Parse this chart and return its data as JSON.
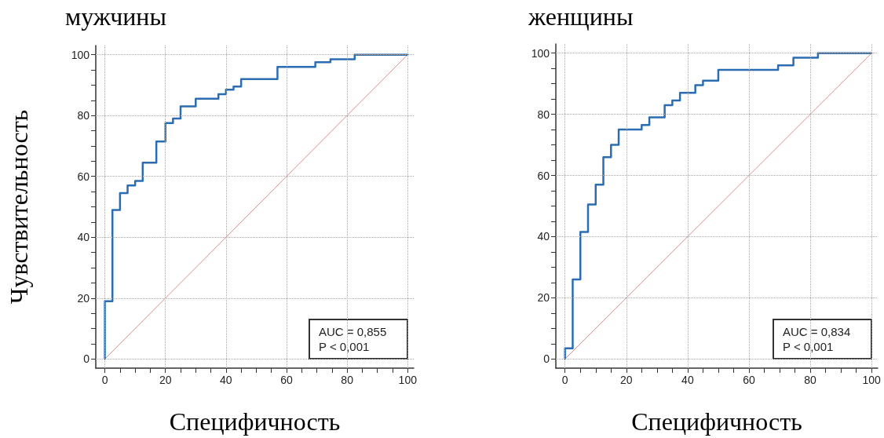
{
  "chart_data": [
    {
      "type": "line",
      "title": "мужчины",
      "xlabel": "Специфичность",
      "ylabel": "Чувствительность",
      "xlim": [
        -3,
        102
      ],
      "ylim": [
        -3,
        103
      ],
      "xticks": [
        0,
        20,
        40,
        60,
        80,
        100
      ],
      "yticks": [
        0,
        20,
        40,
        60,
        80,
        100
      ],
      "grid": true,
      "marker": "none",
      "line_style": "solid",
      "series": [
        {
          "color": "#2a6db3",
          "x": [
            0,
            0,
            2.5,
            2.5,
            5,
            5,
            7.5,
            7.5,
            10,
            10,
            12.5,
            12.5,
            17,
            17,
            20,
            20,
            22.5,
            22.5,
            25,
            25,
            30,
            30,
            37.5,
            37.5,
            40,
            40,
            42.5,
            42.5,
            45,
            45,
            57,
            57,
            69.5,
            69.5,
            74.5,
            74.5,
            82.5,
            82.5,
            100
          ],
          "values": [
            0,
            19,
            19,
            49,
            49,
            54.5,
            54.5,
            57,
            57,
            58.5,
            58.5,
            64.5,
            64.5,
            71.5,
            71.5,
            77.5,
            77.5,
            79,
            79,
            83,
            83,
            85.5,
            85.5,
            87,
            87,
            88.5,
            88.5,
            89.5,
            89.5,
            92,
            92,
            96,
            96,
            97.5,
            97.5,
            98.5,
            98.5,
            100,
            100
          ]
        },
        {
          "color": "#e08a8a",
          "x": [
            0,
            100
          ],
          "values": [
            0,
            100
          ]
        }
      ],
      "annotations": [
        "AUC = 0,855",
        "P < 0,001"
      ]
    },
    {
      "type": "line",
      "title": "женщины",
      "xlabel": "Специфичность",
      "xlim": [
        -3,
        102
      ],
      "ylim": [
        -3,
        103
      ],
      "xticks": [
        0,
        20,
        40,
        60,
        80,
        100
      ],
      "yticks": [
        0,
        20,
        40,
        60,
        80,
        100
      ],
      "grid": true,
      "marker": "none",
      "line_style": "solid",
      "series": [
        {
          "color": "#2a6db3",
          "x": [
            0,
            0,
            2.5,
            2.5,
            5,
            5,
            7.5,
            7.5,
            10,
            10,
            12.5,
            12.5,
            15,
            15,
            17.5,
            17.5,
            25,
            25,
            27.5,
            27.5,
            32.5,
            32.5,
            35,
            35,
            37.5,
            37.5,
            42.5,
            42.5,
            45,
            45,
            50,
            50,
            69.5,
            69.5,
            74.5,
            74.5,
            82.5,
            82.5,
            100
          ],
          "values": [
            0,
            3.5,
            3.5,
            26,
            26,
            41.5,
            41.5,
            50.5,
            50.5,
            57,
            57,
            66,
            66,
            70,
            70,
            75,
            75,
            76.5,
            76.5,
            79,
            79,
            83,
            83,
            84.5,
            84.5,
            87,
            87,
            89.5,
            89.5,
            91,
            91,
            94.5,
            94.5,
            96,
            96,
            98.5,
            98.5,
            100,
            100
          ]
        },
        {
          "color": "#e08a8a",
          "x": [
            0,
            100
          ],
          "values": [
            0,
            100
          ]
        }
      ],
      "annotations": [
        "AUC = 0,834",
        "P < 0,001"
      ]
    }
  ]
}
